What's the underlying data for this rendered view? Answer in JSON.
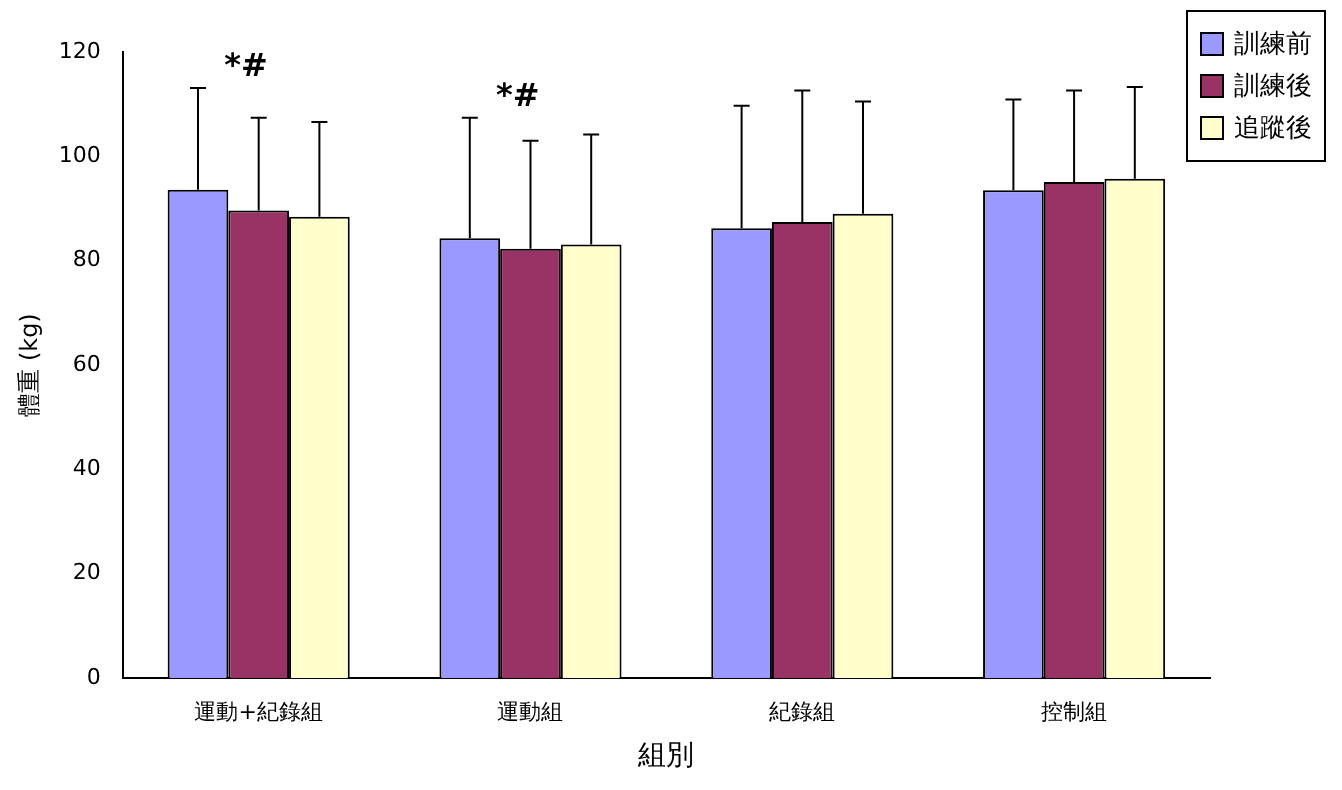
{
  "chart_data": {
    "type": "bar",
    "xlabel": "組別",
    "ylabel": "體重 (kg)",
    "categories": [
      "運動+紀錄組",
      "運動組",
      "紀錄組",
      "控制組"
    ],
    "series": [
      {
        "name": "訓練前",
        "color": "#9999ff",
        "values": [
          93.6,
          84.3,
          86.2,
          93.5
        ],
        "errors": [
          19.5,
          23.1,
          23.5,
          17.4
        ]
      },
      {
        "name": "訓練後",
        "color": "#993366",
        "values": [
          89.6,
          82.3,
          87.4,
          95.1
        ],
        "errors": [
          17.8,
          20.7,
          25.2,
          17.5
        ]
      },
      {
        "name": "追蹤後",
        "color": "#ffffcc",
        "values": [
          88.4,
          83.1,
          89.0,
          95.7
        ],
        "errors": [
          18.2,
          21.1,
          21.5,
          17.6
        ]
      }
    ],
    "ylim": [
      0,
      120
    ],
    "yticks": [
      0,
      20,
      40,
      60,
      80,
      100,
      120
    ],
    "grid": false,
    "legend": "top right",
    "annotations": [
      "*#",
      "*#"
    ]
  }
}
